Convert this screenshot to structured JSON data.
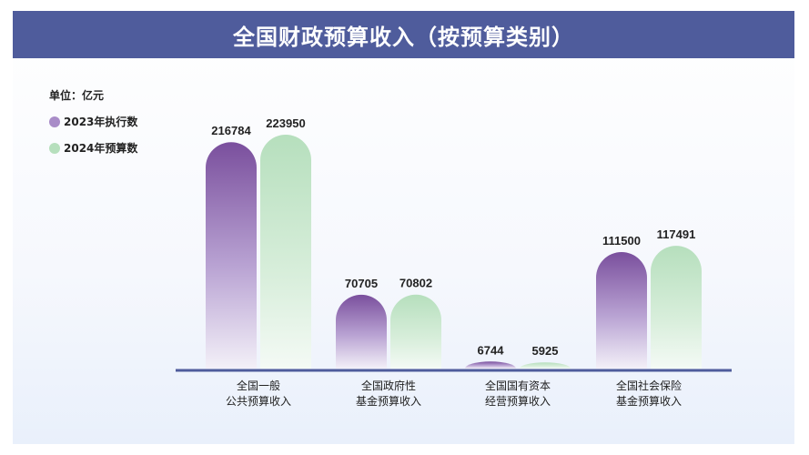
{
  "title": "全国财政预算收入（按预算类别）",
  "unit_label": "单位：亿元",
  "colors": {
    "title_bar": "#4f5c9c",
    "series_2023": "#7a4f9d",
    "series_2024": "#b6dfbd",
    "axis": "#4f5c9c"
  },
  "chart_data": {
    "type": "bar",
    "title": "全国财政预算收入（按预算类别）",
    "unit": "单位：亿元",
    "legend_position": "top-left",
    "grid": false,
    "categories": [
      [
        "全国一般",
        "公共预算收入"
      ],
      [
        "全国政府性",
        "基金预算收入"
      ],
      [
        "全国国有资本",
        "经营预算收入"
      ],
      [
        "全国社会保险",
        "基金预算收入"
      ]
    ],
    "series": [
      {
        "name": "2023年执行数",
        "values": [
          216784,
          70705,
          6744,
          111500
        ]
      },
      {
        "name": "2024年预算数",
        "values": [
          223950,
          70802,
          5925,
          117491
        ]
      }
    ]
  }
}
